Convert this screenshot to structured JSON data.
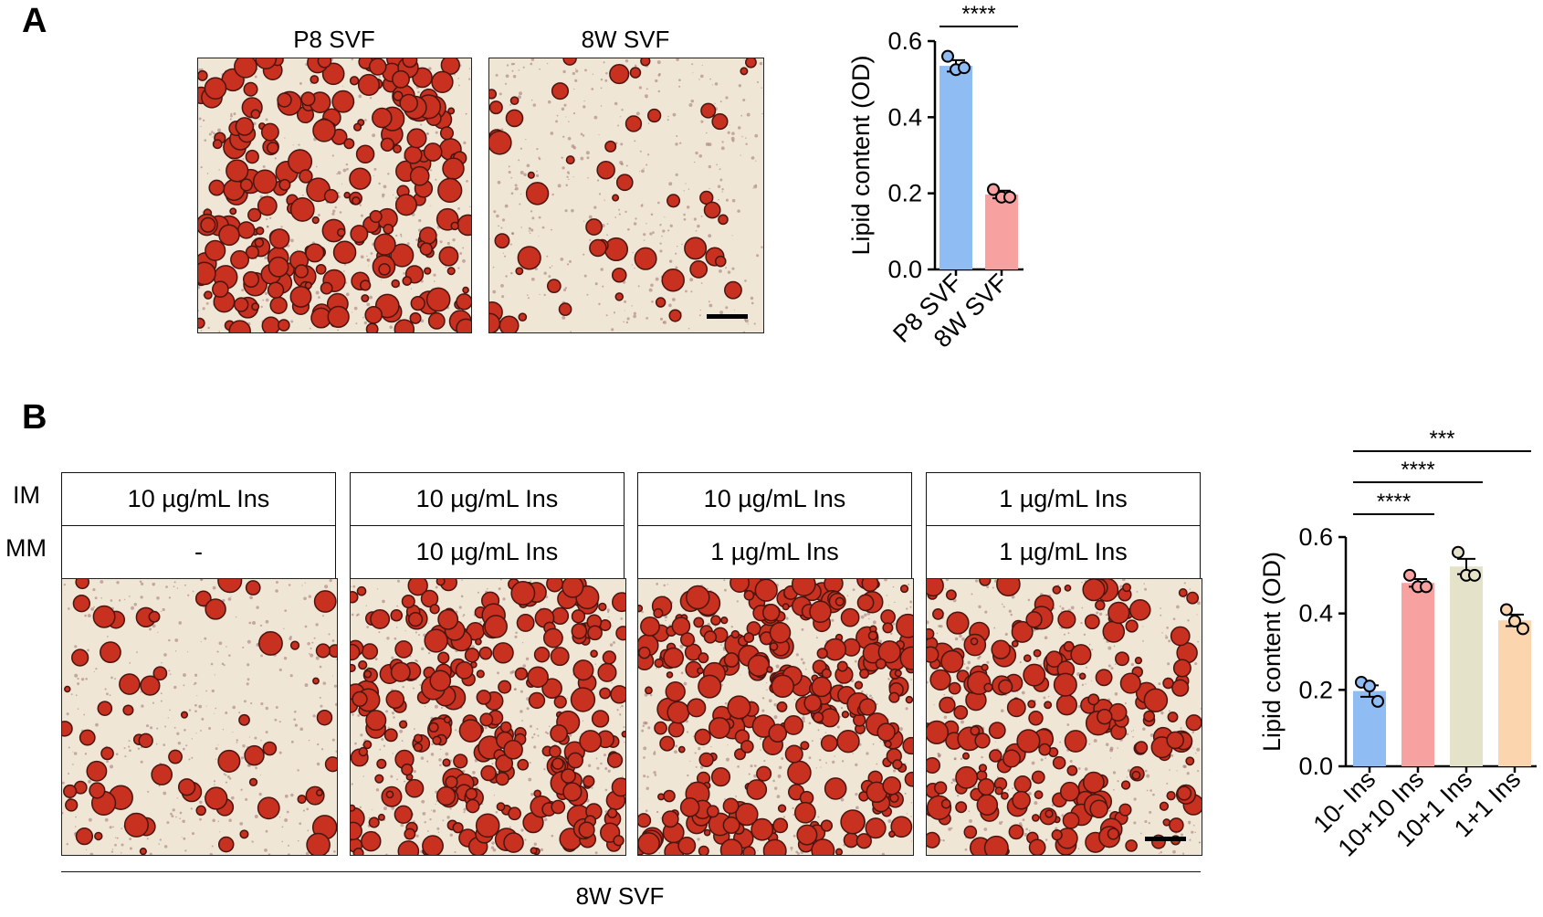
{
  "panel_a": {
    "letter": "A",
    "image_labels": [
      "P8 SVF",
      "8W SVF"
    ]
  },
  "panel_b": {
    "letter": "B",
    "row_labels": [
      "IM",
      "MM"
    ],
    "im": [
      "10 µg/mL Ins",
      "10 µg/mL Ins",
      "10 µg/mL Ins",
      "1 µg/mL Ins"
    ],
    "mm": [
      "-",
      "10 µg/mL Ins",
      "1 µg/mL Ins",
      "1 µg/mL Ins"
    ],
    "group_label": "8W SVF"
  },
  "chart_data": [
    {
      "type": "bar",
      "title": "",
      "ylabel": "Lipid content (OD)",
      "ylim": [
        0,
        0.6
      ],
      "yticks": [
        "0.0",
        "0.2",
        "0.4",
        "0.6"
      ],
      "categories": [
        "P8 SVF",
        "8W SVF"
      ],
      "values": [
        0.535,
        0.197
      ],
      "sem": [
        0.015,
        0.01
      ],
      "points": [
        [
          0.56,
          0.525,
          0.53
        ],
        [
          0.21,
          0.19,
          0.19
        ]
      ],
      "colors": [
        "#8fbcf2",
        "#f8a1a1"
      ],
      "significance": [
        {
          "from": 0,
          "to": 1,
          "label": "****"
        }
      ]
    },
    {
      "type": "bar",
      "title": "",
      "ylabel": "Lipid content (OD)",
      "ylim": [
        0,
        0.6
      ],
      "yticks": [
        "0.0",
        "0.2",
        "0.4",
        "0.6"
      ],
      "categories": [
        "10- Ins",
        "10+10 Ins",
        "10+1 Ins",
        "1+1 Ins"
      ],
      "values": [
        0.197,
        0.48,
        0.523,
        0.382
      ],
      "sem": [
        0.015,
        0.01,
        0.02,
        0.015
      ],
      "points": [
        [
          0.22,
          0.21,
          0.17
        ],
        [
          0.5,
          0.47,
          0.47
        ],
        [
          0.56,
          0.5,
          0.5
        ],
        [
          0.41,
          0.38,
          0.36
        ]
      ],
      "colors": [
        "#8fbcf2",
        "#f8a1a1",
        "#e4e2c8",
        "#fbd5ad"
      ],
      "significance": [
        {
          "from": 0,
          "to": 1,
          "label": "****"
        },
        {
          "from": 0,
          "to": 2,
          "label": "****"
        },
        {
          "from": 0,
          "to": 3,
          "label": "***"
        }
      ]
    }
  ]
}
